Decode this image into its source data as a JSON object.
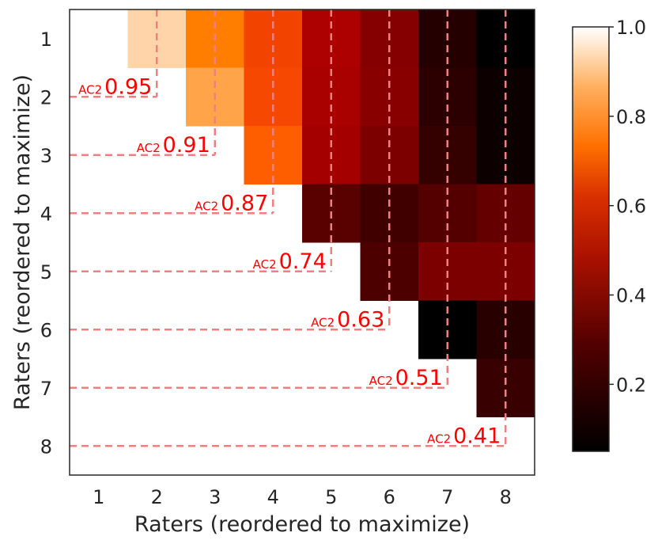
{
  "chart_data": {
    "type": "heatmap",
    "xlabel": "Raters (reordered to maximize)",
    "ylabel": "Raters (reordered to maximize)",
    "x_categories": [
      "1",
      "2",
      "3",
      "4",
      "5",
      "6",
      "7",
      "8"
    ],
    "y_categories": [
      "1",
      "2",
      "3",
      "4",
      "5",
      "6",
      "7",
      "8"
    ],
    "colormap": "gist_heat",
    "colorbar": {
      "ticks": [
        "0.2",
        "0.4",
        "0.6",
        "0.8",
        "1.0"
      ],
      "tick_values": [
        0.2,
        0.4,
        0.6,
        0.8,
        1.0
      ],
      "range": [
        0.05,
        1.0
      ]
    },
    "matrix": [
      [
        null,
        0.92,
        0.76,
        0.65,
        0.48,
        0.38,
        0.14,
        0.05
      ],
      [
        null,
        null,
        0.83,
        0.66,
        0.47,
        0.39,
        0.16,
        0.08
      ],
      [
        null,
        null,
        null,
        0.7,
        0.46,
        0.36,
        0.18,
        0.08
      ],
      [
        null,
        null,
        null,
        null,
        0.27,
        0.21,
        0.26,
        0.3
      ],
      [
        null,
        null,
        null,
        null,
        null,
        0.24,
        0.36,
        0.36
      ],
      [
        null,
        null,
        null,
        null,
        null,
        null,
        0.05,
        0.15
      ],
      [
        null,
        null,
        null,
        null,
        null,
        null,
        null,
        0.19
      ],
      [
        null,
        null,
        null,
        null,
        null,
        null,
        null,
        null
      ]
    ],
    "annotations": [
      {
        "prefix": "AC2",
        "value": "0.95"
      },
      {
        "prefix": "AC2",
        "value": "0.91"
      },
      {
        "prefix": "AC2",
        "value": "0.87"
      },
      {
        "prefix": "AC2",
        "value": "0.74"
      },
      {
        "prefix": "AC2",
        "value": "0.63"
      },
      {
        "prefix": "AC2",
        "value": "0.51"
      },
      {
        "prefix": "AC2",
        "value": "0.41"
      }
    ],
    "grid": false,
    "dashed_separators": true,
    "separator_color": "#f08080"
  }
}
